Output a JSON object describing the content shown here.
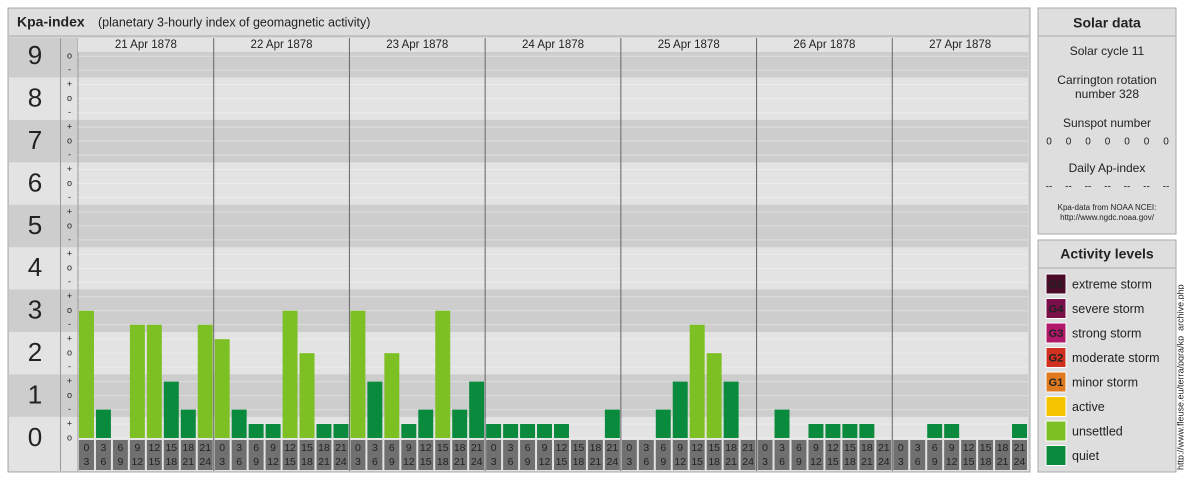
{
  "header": {
    "title": "Kpa-index",
    "subtitle": "(planetary 3-hourly index of geomagnetic activity)"
  },
  "chart_data": {
    "type": "bar",
    "ylim": [
      0,
      9.1
    ],
    "yticks": [
      0,
      1,
      2,
      3,
      4,
      5,
      6,
      7,
      8,
      9
    ],
    "minor_ticks": [
      {
        "value": 0,
        "label": "o"
      },
      {
        "value": 0.33,
        "label": "+"
      },
      {
        "value": 0.67,
        "label": "-"
      },
      {
        "value": 1,
        "label": "o"
      },
      {
        "value": 1.33,
        "label": "+"
      },
      {
        "value": 1.67,
        "label": "-"
      },
      {
        "value": 2,
        "label": "o"
      },
      {
        "value": 2.33,
        "label": "+"
      },
      {
        "value": 2.67,
        "label": "-"
      },
      {
        "value": 3,
        "label": "o"
      },
      {
        "value": 3.33,
        "label": "+"
      },
      {
        "value": 3.67,
        "label": "-"
      },
      {
        "value": 4,
        "label": "o"
      },
      {
        "value": 4.33,
        "label": "+"
      },
      {
        "value": 4.67,
        "label": "-"
      },
      {
        "value": 5,
        "label": "o"
      },
      {
        "value": 5.33,
        "label": "+"
      },
      {
        "value": 5.67,
        "label": "-"
      },
      {
        "value": 6,
        "label": "o"
      },
      {
        "value": 6.33,
        "label": "+"
      },
      {
        "value": 6.67,
        "label": "-"
      },
      {
        "value": 7,
        "label": "o"
      },
      {
        "value": 7.33,
        "label": "+"
      },
      {
        "value": 7.67,
        "label": "-"
      },
      {
        "value": 8,
        "label": "o"
      },
      {
        "value": 8.33,
        "label": "+"
      },
      {
        "value": 8.67,
        "label": "-"
      },
      {
        "value": 9,
        "label": "o"
      }
    ],
    "hour_labels": [
      [
        "0",
        "3"
      ],
      [
        "3",
        "6"
      ],
      [
        "6",
        "9"
      ],
      [
        "9",
        "12"
      ],
      [
        "12",
        "15"
      ],
      [
        "15",
        "18"
      ],
      [
        "18",
        "21"
      ],
      [
        "21",
        "24"
      ]
    ],
    "days": [
      {
        "date": "21 Apr 1878",
        "values": [
          3,
          0.67,
          0,
          2.67,
          2.67,
          1.33,
          0.67,
          2.67
        ],
        "colors": [
          "#7dc024",
          "#0a8a3c",
          "#0a8a3c",
          "#7dc024",
          "#7dc024",
          "#0a8a3c",
          "#0a8a3c",
          "#7dc024"
        ]
      },
      {
        "date": "22 Apr 1878",
        "values": [
          2.33,
          0.67,
          0.33,
          0.33,
          3,
          2,
          0.33,
          0.33
        ],
        "colors": [
          "#7dc024",
          "#0a8a3c",
          "#0a8a3c",
          "#0a8a3c",
          "#7dc024",
          "#7dc024",
          "#0a8a3c",
          "#0a8a3c"
        ]
      },
      {
        "date": "23 Apr 1878",
        "values": [
          3,
          1.33,
          2,
          0.33,
          0.67,
          3,
          0.67,
          1.33
        ],
        "colors": [
          "#7dc024",
          "#0a8a3c",
          "#7dc024",
          "#0a8a3c",
          "#0a8a3c",
          "#7dc024",
          "#0a8a3c",
          "#0a8a3c"
        ]
      },
      {
        "date": "24 Apr 1878",
        "values": [
          0.33,
          0.33,
          0.33,
          0.33,
          0.33,
          0,
          0,
          0.67
        ],
        "colors": [
          "#0a8a3c",
          "#0a8a3c",
          "#0a8a3c",
          "#0a8a3c",
          "#0a8a3c",
          "#0a8a3c",
          "#0a8a3c",
          "#0a8a3c"
        ]
      },
      {
        "date": "25 Apr 1878",
        "values": [
          0,
          0,
          0.67,
          1.33,
          2.67,
          2,
          1.33,
          0
        ],
        "colors": [
          "#0a8a3c",
          "#0a8a3c",
          "#0a8a3c",
          "#0a8a3c",
          "#7dc024",
          "#7dc024",
          "#0a8a3c",
          "#0a8a3c"
        ]
      },
      {
        "date": "26 Apr 1878",
        "values": [
          0,
          0.67,
          0,
          0.33,
          0.33,
          0.33,
          0.33,
          0
        ],
        "colors": [
          "#0a8a3c",
          "#0a8a3c",
          "#0a8a3c",
          "#0a8a3c",
          "#0a8a3c",
          "#0a8a3c",
          "#0a8a3c",
          "#0a8a3c"
        ]
      },
      {
        "date": "27 Apr 1878",
        "values": [
          0,
          0,
          0.33,
          0.33,
          0,
          0,
          0,
          0.33
        ],
        "colors": [
          "#0a8a3c",
          "#0a8a3c",
          "#0a8a3c",
          "#0a8a3c",
          "#0a8a3c",
          "#0a8a3c",
          "#0a8a3c",
          "#0a8a3c"
        ]
      }
    ]
  },
  "solar": {
    "title": "Solar data",
    "cycle": "Solar cycle 11",
    "carrington": [
      "Carrington rotation",
      "number 328"
    ],
    "sunspot_title": "Sunspot number",
    "sunspot": [
      0,
      0,
      0,
      0,
      0,
      0,
      0
    ],
    "ap_title": "Daily Ap-index",
    "ap": [
      "--",
      "--",
      "--",
      "--",
      "--",
      "--",
      "--"
    ],
    "source": [
      "Kpa-data from NOAA NCEI:",
      "http://www.ngdc.noaa.gov/"
    ]
  },
  "levels": {
    "title": "Activity levels",
    "items": [
      {
        "badge": "G5",
        "name": "extreme storm",
        "color": "#4a0a2a"
      },
      {
        "badge": "G4",
        "name": "severe storm",
        "color": "#7a0f4a"
      },
      {
        "badge": "G3",
        "name": "strong storm",
        "color": "#b0186a"
      },
      {
        "badge": "G2",
        "name": "moderate storm",
        "color": "#d03020"
      },
      {
        "badge": "G1",
        "name": "minor storm",
        "color": "#e07a1e"
      },
      {
        "name": "active",
        "color": "#f5c400"
      },
      {
        "name": "unsettled",
        "color": "#7dc024"
      },
      {
        "name": "quiet",
        "color": "#0a8a3c"
      }
    ]
  },
  "side_url": "http://www.fleuse.eu/terra/pgra/kp_archive.php"
}
